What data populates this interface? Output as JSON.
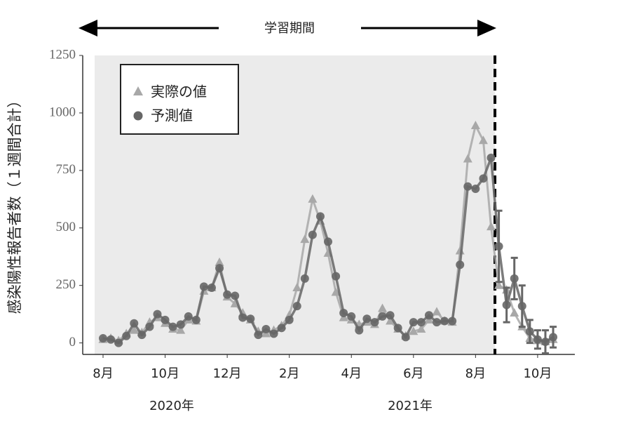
{
  "chart_data": {
    "type": "line",
    "title": "学習期間",
    "ylabel": "感染陽性報告者数（１週間合計）",
    "year_labels": [
      "2020年",
      "2021年"
    ],
    "categories": [
      "8月",
      null,
      null,
      null,
      null,
      null,
      null,
      null,
      "10月",
      null,
      null,
      null,
      null,
      null,
      null,
      null,
      "12月",
      null,
      null,
      null,
      null,
      null,
      null,
      null,
      "2月",
      null,
      null,
      null,
      null,
      null,
      null,
      null,
      "4月",
      null,
      null,
      null,
      null,
      null,
      null,
      null,
      "6月",
      null,
      null,
      null,
      null,
      null,
      null,
      null,
      "8月",
      null,
      null,
      null,
      null,
      null,
      null,
      null,
      "10月",
      null,
      null
    ],
    "series": [
      {
        "name": "実際の値",
        "color": "#a8a8a8",
        "marker": "triangle",
        "values": [
          15,
          20,
          10,
          40,
          55,
          45,
          90,
          110,
          85,
          60,
          55,
          100,
          95,
          225,
          240,
          350,
          200,
          170,
          130,
          100,
          50,
          40,
          55,
          75,
          120,
          240,
          450,
          625,
          530,
          390,
          220,
          110,
          100,
          80,
          90,
          80,
          150,
          95,
          60,
          30,
          50,
          60,
          100,
          135,
          95,
          90,
          400,
          800,
          945,
          880,
          505,
          250,
          230,
          130,
          70,
          20,
          10,
          5,
          15
        ]
      },
      {
        "name": "予測値",
        "color": "#666666",
        "marker": "circle",
        "values": [
          20,
          15,
          0,
          30,
          85,
          35,
          70,
          125,
          100,
          70,
          80,
          115,
          100,
          245,
          240,
          325,
          210,
          205,
          110,
          105,
          35,
          60,
          40,
          65,
          100,
          160,
          280,
          470,
          550,
          440,
          290,
          130,
          115,
          55,
          105,
          90,
          115,
          120,
          65,
          25,
          90,
          90,
          120,
          90,
          95,
          95,
          340,
          680,
          670,
          715,
          805,
          420,
          165,
          280,
          160,
          50,
          15,
          5,
          25
        ],
        "errors": [
          null,
          null,
          null,
          null,
          null,
          null,
          null,
          null,
          null,
          null,
          null,
          null,
          null,
          null,
          null,
          null,
          null,
          null,
          null,
          null,
          null,
          null,
          null,
          null,
          null,
          null,
          null,
          null,
          null,
          null,
          null,
          null,
          null,
          null,
          null,
          null,
          null,
          null,
          null,
          null,
          null,
          null,
          null,
          null,
          null,
          null,
          null,
          null,
          null,
          null,
          null,
          155,
          75,
          90,
          90,
          50,
          40,
          50,
          45
        ]
      }
    ],
    "ylim": [
      -50,
      1250
    ],
    "yticks": [
      0,
      250,
      500,
      750,
      1000,
      1250
    ],
    "legend": "upper left",
    "grid": false
  }
}
